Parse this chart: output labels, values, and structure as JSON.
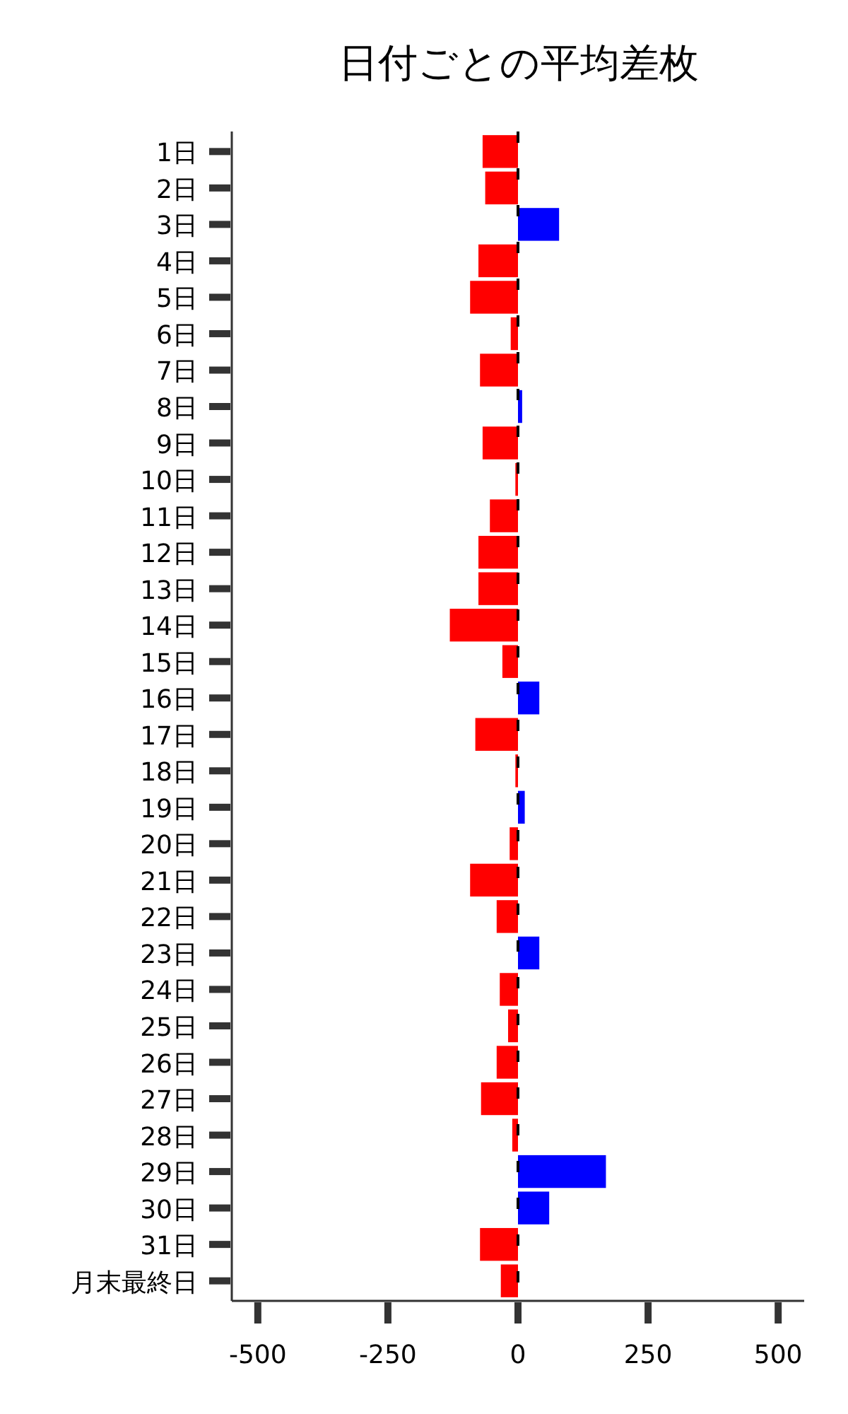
{
  "chart_data": {
    "type": "bar",
    "orientation": "horizontal",
    "title": "日付ごとの平均差枚",
    "categories": [
      "1日",
      "2日",
      "3日",
      "4日",
      "5日",
      "6日",
      "7日",
      "8日",
      "9日",
      "10日",
      "11日",
      "12日",
      "13日",
      "14日",
      "15日",
      "16日",
      "17日",
      "18日",
      "19日",
      "20日",
      "21日",
      "22日",
      "23日",
      "24日",
      "25日",
      "26日",
      "27日",
      "28日",
      "29日",
      "30日",
      "31日",
      "月末最終日"
    ],
    "values": [
      -68,
      -63,
      79,
      -76,
      -92,
      -14,
      -73,
      8,
      -68,
      -5,
      -54,
      -76,
      -76,
      -131,
      -30,
      41,
      -82,
      -5,
      13,
      -16,
      -92,
      -41,
      41,
      -35,
      -19,
      -41,
      -71,
      -11,
      169,
      60,
      -73,
      -33
    ],
    "colors": [
      "#ff0000",
      "#ff0000",
      "#0000ff",
      "#ff0000",
      "#ff0000",
      "#ff0000",
      "#ff0000",
      "#0000ff",
      "#ff0000",
      "#ff0000",
      "#ff0000",
      "#ff0000",
      "#ff0000",
      "#ff0000",
      "#ff0000",
      "#0000ff",
      "#ff0000",
      "#ff0000",
      "#0000ff",
      "#ff0000",
      "#ff0000",
      "#ff0000",
      "#0000ff",
      "#ff0000",
      "#ff0000",
      "#ff0000",
      "#ff0000",
      "#ff0000",
      "#0000ff",
      "#0000ff",
      "#ff0000",
      "#ff0000"
    ],
    "xlim": [
      -550,
      550
    ],
    "xticks": [
      -500,
      -250,
      0,
      250,
      500
    ],
    "ref_lines": [
      {
        "axis": "x",
        "value": 0,
        "color": "#000000",
        "line_style": "dashed"
      }
    ],
    "grid": false
  }
}
